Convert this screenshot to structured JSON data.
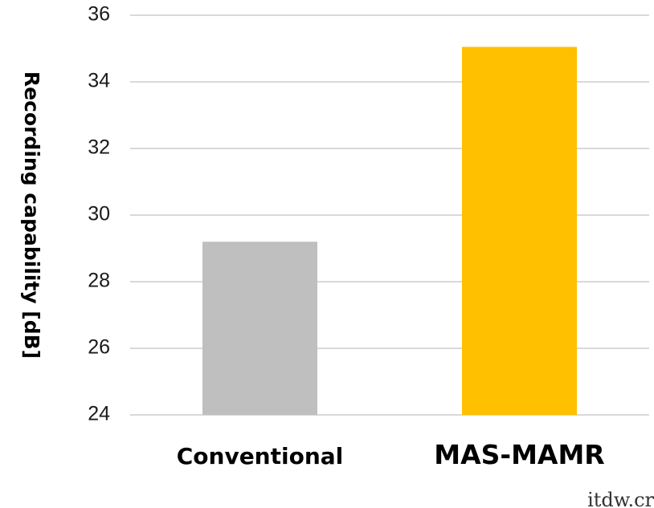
{
  "chart_data": {
    "type": "bar",
    "categories": [
      "Conventional",
      "MAS-MAMR"
    ],
    "values": [
      29.2,
      35.05
    ],
    "title": "",
    "xlabel": "",
    "ylabel": "Recording capability [dB]",
    "ylim": [
      24,
      36
    ],
    "yticks": [
      24,
      26,
      28,
      30,
      32,
      34,
      36
    ],
    "grid": true,
    "legend": "none",
    "bar_colors": [
      "#bfbfbf",
      "#ffc000"
    ],
    "grid_color": "#d9d9d9"
  },
  "watermark": "itdw.cr"
}
